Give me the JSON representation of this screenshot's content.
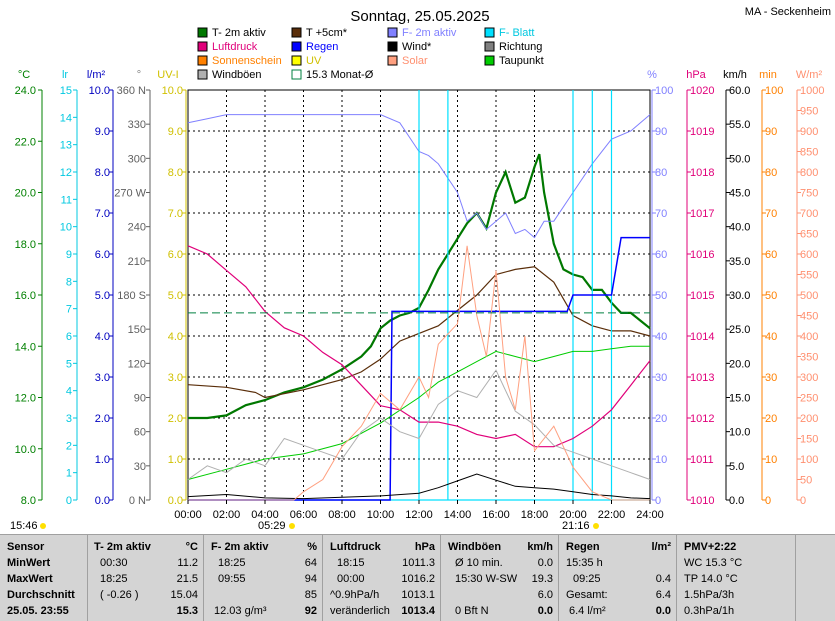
{
  "header": {
    "title": "Sonntag, 25.05.2025",
    "location": "MA - Seckenheim"
  },
  "colors": {
    "t2m": "#007800",
    "t5cm": "#5a2e0a",
    "f2m": "#8080ff",
    "fblatt": "#00e0ff",
    "luftdruck": "#e0007a",
    "regen": "#0000ff",
    "wind": "#000000",
    "richtung": "#808080",
    "sonnenschein": "#ff8000",
    "uv": "#ffff00",
    "solar": "#ffa080",
    "taupunkt": "#00cc00",
    "windboeen": "#b0b0b0",
    "monat": "#008040"
  },
  "legend": [
    {
      "label": "T- 2m aktiv",
      "color": "#007800"
    },
    {
      "label": "T +5cm*",
      "color": "#5a2e0a"
    },
    {
      "label": "F- 2m aktiv",
      "color": "#8080ff",
      "text_color": "#8080ff"
    },
    {
      "label": "F- Blatt",
      "color": "#00e0ff",
      "text_color": "#00c8e0"
    },
    {
      "label": "Luftdruck",
      "color": "#e0007a",
      "text_color": "#e0007a"
    },
    {
      "label": "Regen",
      "color": "#0000ff",
      "text_color": "#0000ff"
    },
    {
      "label": "Wind*",
      "color": "#000000"
    },
    {
      "label": "Richtung",
      "color": "#808080"
    },
    {
      "label": "Sonnenschein",
      "color": "#ff8000",
      "text_color": "#ff8000"
    },
    {
      "label": "UV",
      "color": "#ffff00",
      "text_color": "#d0c000"
    },
    {
      "label": "Solar",
      "color": "#ffa080",
      "text_color": "#ff9070"
    },
    {
      "label": "Taupunkt",
      "color": "#00cc00"
    },
    {
      "label": "Windböen",
      "color": "#b0b0b0"
    },
    {
      "label": "15.3 Monat-Ø",
      "color": "#008040",
      "hollow": true
    }
  ],
  "axes": {
    "unit_labels": [
      {
        "text": "°C",
        "color": "#008000"
      },
      {
        "text": "lr",
        "color": "#00c8e0"
      },
      {
        "text": "l/m²",
        "color": "#0000c0"
      },
      {
        "text": "°",
        "color": "#808080"
      },
      {
        "text": "UV-I",
        "color": "#d0c000"
      },
      {
        "text": "%",
        "color": "#8080ff"
      },
      {
        "text": "hPa",
        "color": "#e0007a"
      },
      {
        "text": "km/h",
        "color": "#000000"
      },
      {
        "text": "min",
        "color": "#ff8000"
      },
      {
        "text": "W/m²",
        "color": "#ff9070"
      }
    ],
    "temp": {
      "color": "#008000",
      "ticks": [
        "24.0",
        "22.0",
        "20.0",
        "18.0",
        "16.0",
        "14.0",
        "12.0",
        "10.0",
        "8.0"
      ]
    },
    "leaf": {
      "color": "#00c8e0",
      "ticks": [
        "15",
        "14",
        "13",
        "12",
        "11",
        "10",
        "9",
        "8",
        "7",
        "6",
        "5",
        "4",
        "3",
        "2",
        "1",
        "0"
      ]
    },
    "rain": {
      "color": "#0000c0",
      "ticks": [
        "10.0",
        "9.0",
        "8.0",
        "7.0",
        "6.0",
        "5.0",
        "4.0",
        "3.0",
        "2.0",
        "1.0",
        "0.0"
      ]
    },
    "dir": {
      "color": "#606060",
      "ticks": [
        "360 N",
        "330",
        "300",
        "270 W",
        "240",
        "210",
        "180 S",
        "150",
        "120",
        "90",
        "60",
        "30",
        "0 N"
      ]
    },
    "uv": {
      "color": "#d0c000",
      "ticks": [
        "10.0",
        "9.0",
        "8.0",
        "7.0",
        "6.0",
        "5.0",
        "4.0",
        "3.0",
        "2.0",
        "1.0",
        "0.0"
      ]
    },
    "hum": {
      "color": "#8080ff",
      "ticks": [
        "100",
        "90",
        "80",
        "70",
        "60",
        "50",
        "40",
        "30",
        "20",
        "10",
        "0"
      ]
    },
    "press": {
      "color": "#e0007a",
      "ticks": [
        "1020",
        "1019",
        "1018",
        "1017",
        "1016",
        "1015",
        "1014",
        "1013",
        "1012",
        "1011",
        "1010"
      ]
    },
    "wind": {
      "color": "#000000",
      "ticks": [
        "60.0",
        "55.0",
        "50.0",
        "45.0",
        "40.0",
        "35.0",
        "30.0",
        "25.0",
        "20.0",
        "15.0",
        "10.0",
        "5.0",
        "0.0"
      ]
    },
    "sun": {
      "color": "#ff8000",
      "ticks": [
        "100",
        "90",
        "80",
        "70",
        "60",
        "50",
        "40",
        "30",
        "20",
        "10",
        "0"
      ]
    },
    "solar": {
      "color": "#ff9070",
      "ticks": [
        "1000",
        "950",
        "900",
        "850",
        "800",
        "750",
        "700",
        "650",
        "600",
        "550",
        "500",
        "450",
        "400",
        "350",
        "300",
        "250",
        "200",
        "150",
        "100",
        "50",
        "0"
      ]
    },
    "x": {
      "ticks": [
        "00:00",
        "02:00",
        "04:00",
        "06:00",
        "08:00",
        "10:00",
        "12:00",
        "14:00",
        "16:00",
        "18:00",
        "20:00",
        "22:00",
        "24:00"
      ]
    }
  },
  "chart_data": {
    "type": "line",
    "title": "Sonntag, 25.05.2025",
    "xlabel": "",
    "x_range": [
      0,
      24
    ],
    "grid": true,
    "legend_position": "top",
    "series": [
      {
        "name": "T- 2m aktiv",
        "axis": "temp",
        "ylim": [
          8,
          24
        ],
        "x": [
          0,
          1,
          2,
          3,
          4,
          5,
          6,
          7,
          8,
          9,
          9.5,
          10,
          10.5,
          11,
          11.5,
          12,
          12.5,
          13,
          13.5,
          14,
          14.5,
          15,
          15.5,
          16,
          16.5,
          17,
          17.5,
          18,
          18.25,
          18.5,
          19,
          19.5,
          20,
          20.5,
          21,
          21.5,
          22,
          22.5,
          23,
          23.5,
          24
        ],
        "y": [
          11.2,
          11.2,
          11.3,
          11.7,
          11.9,
          12.2,
          12.4,
          12.7,
          13.1,
          13.6,
          14.0,
          14.7,
          15.0,
          15.2,
          15.3,
          15.5,
          16.2,
          17.0,
          17.6,
          18.2,
          18.8,
          19.2,
          18.6,
          20.0,
          20.8,
          19.6,
          19.8,
          21.0,
          21.5,
          20.0,
          18.0,
          17.0,
          16.8,
          16.7,
          16.2,
          16.2,
          15.7,
          15.3,
          15.3,
          15.0,
          14.7
        ]
      },
      {
        "name": "T +5cm*",
        "axis": "temp",
        "ylim": [
          8,
          24
        ],
        "x": [
          0,
          2,
          3.5,
          4,
          6,
          8,
          9,
          10,
          11,
          12,
          13,
          14,
          15,
          16,
          17,
          18,
          19,
          20,
          21,
          22,
          23,
          24
        ],
        "y": [
          12.5,
          12.4,
          12.2,
          12.0,
          12.3,
          12.7,
          13.0,
          13.5,
          14.2,
          14.5,
          14.8,
          15.4,
          16.0,
          16.8,
          17.0,
          17.1,
          16.5,
          15.2,
          14.8,
          14.6,
          14.6,
          14.4
        ]
      },
      {
        "name": "F- 2m aktiv",
        "axis": "hum",
        "ylim": [
          0,
          100
        ],
        "x": [
          0,
          1,
          2,
          4,
          6,
          8,
          10,
          11,
          12,
          12.5,
          13,
          14,
          14.5,
          15,
          15.5,
          16,
          16.5,
          17,
          17.5,
          18,
          18.5,
          19,
          20,
          21,
          22,
          23,
          24
        ],
        "y": [
          92,
          93,
          94,
          94,
          94,
          94,
          94,
          92,
          85,
          84,
          82,
          75,
          68,
          70,
          66,
          68,
          70,
          65,
          66,
          64,
          68,
          68,
          75,
          82,
          88,
          90,
          94
        ]
      },
      {
        "name": "F- Blatt",
        "axis": "leaf",
        "ylim": [
          0,
          15
        ],
        "x": [
          0,
          12,
          12,
          12,
          13.5,
          13.5,
          13.5,
          20,
          20,
          20,
          21,
          21,
          21,
          22,
          22,
          22,
          24
        ],
        "y": [
          0,
          0,
          15,
          0,
          0,
          15,
          0,
          0,
          15,
          0,
          0,
          15,
          0,
          0,
          15,
          0,
          0
        ]
      },
      {
        "name": "Luftdruck",
        "axis": "press",
        "ylim": [
          1010,
          1020
        ],
        "x": [
          0,
          1,
          2,
          3,
          4,
          5,
          6,
          7,
          8,
          9,
          10,
          11,
          12,
          13,
          14,
          15,
          16,
          17,
          18,
          19,
          20,
          21,
          22,
          23,
          24
        ],
        "y": [
          1016.2,
          1016.0,
          1015.6,
          1015.2,
          1014.6,
          1014.2,
          1014.0,
          1013.6,
          1013.3,
          1012.8,
          1012.3,
          1012.2,
          1011.9,
          1011.9,
          1011.8,
          1011.6,
          1011.5,
          1011.6,
          1011.3,
          1011.3,
          1011.5,
          1011.8,
          1012.2,
          1012.8,
          1013.4
        ]
      },
      {
        "name": "Regen",
        "axis": "rain",
        "ylim": [
          0,
          10
        ],
        "x": [
          0,
          10.5,
          10.6,
          19.7,
          20,
          22,
          22.5,
          24
        ],
        "y": [
          0,
          0,
          4.6,
          4.6,
          5.0,
          5.0,
          6.4,
          6.4
        ]
      },
      {
        "name": "Taupunkt",
        "axis": "temp",
        "ylim": [
          8,
          24
        ],
        "x": [
          0,
          2,
          4,
          6,
          8,
          10,
          12,
          13,
          14,
          15,
          16,
          17,
          18,
          19,
          20,
          21,
          22,
          23,
          24
        ],
        "y": [
          8.8,
          9.2,
          9.6,
          9.8,
          10.2,
          11.0,
          12.0,
          12.6,
          13.0,
          13.4,
          13.8,
          13.6,
          13.4,
          13.6,
          13.8,
          13.8,
          13.9,
          14.0,
          14.0
        ]
      },
      {
        "name": "Wind*",
        "axis": "wind",
        "ylim": [
          0,
          60
        ],
        "x": [
          0,
          2,
          4,
          6,
          8,
          10,
          12,
          13,
          14,
          15,
          16,
          17,
          18,
          19,
          20,
          21,
          22,
          23,
          24
        ],
        "y": [
          0.5,
          0.8,
          0.3,
          0.2,
          0.4,
          0.6,
          1.0,
          1.8,
          2.8,
          3.8,
          2.9,
          2.0,
          1.8,
          1.6,
          1.2,
          0.8,
          0.6,
          0.3,
          0.2
        ]
      },
      {
        "name": "Windböen",
        "axis": "wind",
        "ylim": [
          0,
          60
        ],
        "x": [
          0,
          1,
          2,
          3,
          4,
          5,
          6,
          7,
          8,
          9,
          10,
          11,
          12,
          13,
          14,
          15,
          16,
          17,
          18,
          19,
          20,
          21,
          22,
          23,
          24
        ],
        "y": [
          3,
          5,
          4,
          6,
          5,
          9,
          8,
          7,
          6,
          10,
          12,
          10,
          9,
          14,
          16,
          15,
          19,
          13,
          11,
          8,
          7,
          6,
          5,
          4,
          3
        ]
      },
      {
        "name": "Solar",
        "axis": "solar",
        "ylim": [
          0,
          1000
        ],
        "x": [
          0,
          5.5,
          6,
          7,
          8,
          9,
          10,
          11,
          12,
          12.5,
          13,
          14,
          14.5,
          15,
          15.5,
          16,
          16.5,
          17,
          17.5,
          18,
          19,
          20,
          21,
          22,
          24
        ],
        "y": [
          0,
          0,
          20,
          50,
          130,
          180,
          260,
          220,
          300,
          250,
          380,
          430,
          620,
          450,
          350,
          560,
          300,
          220,
          400,
          120,
          180,
          80,
          20,
          0,
          0
        ]
      },
      {
        "name": "Monat-Ø",
        "axis": "temp",
        "ylim": [
          8,
          24
        ],
        "x": [
          0,
          24
        ],
        "y": [
          15.3,
          15.3
        ]
      }
    ]
  },
  "stats": {
    "c1": {
      "header": "Sensor",
      "rows": [
        "MinWert",
        "MaxWert",
        "Durchschnitt",
        "25.05. 23:55"
      ]
    },
    "c2": {
      "header": "T- 2m aktiv",
      "unit": "°C",
      "rows": [
        [
          "00:30",
          "11.2"
        ],
        [
          "18:25",
          "21.5"
        ],
        [
          "( -0.26 )",
          "15.04"
        ],
        [
          "",
          "15.3"
        ]
      ]
    },
    "c3": {
      "header": "F- 2m aktiv",
      "unit": "%",
      "rows": [
        [
          "18:25",
          "64"
        ],
        [
          "09:55",
          "94"
        ],
        [
          "",
          "85"
        ],
        [
          "12.03 g/m³",
          "92"
        ]
      ]
    },
    "c4": {
      "header": "Luftdruck",
      "unit": "hPa",
      "rows": [
        [
          "18:15",
          "1011.3"
        ],
        [
          "00:00",
          "1016.2"
        ],
        [
          "^0.9hPa/h",
          "1013.1"
        ],
        [
          "veränderlich",
          "1013.4"
        ]
      ]
    },
    "c5": {
      "header": "Windböen",
      "unit": "km/h",
      "rows": [
        [
          "Ø 10 min.",
          "0.0"
        ],
        [
          "15:30 W-SW",
          "19.3"
        ],
        [
          "",
          "6.0"
        ],
        [
          "0 Bft N",
          "0.0"
        ]
      ]
    },
    "c6": {
      "header": "Regen",
      "unit": "l/m²",
      "rows": [
        [
          "15:35 h",
          ""
        ],
        [
          "09:25",
          "0.4"
        ],
        [
          "Gesamt:",
          "6.4"
        ],
        [
          "6.4 l/m²",
          "0.0"
        ]
      ]
    },
    "c7": {
      "header": "PMV+2:22",
      "rows": [
        "WC 15.3 °C",
        "TP 14.0 °C",
        "1.5hPa/3h",
        "0.3hPa/1h"
      ]
    }
  },
  "sun": {
    "rise_label": "05:29",
    "set_label": "21:16",
    "time_label": "15:46"
  }
}
